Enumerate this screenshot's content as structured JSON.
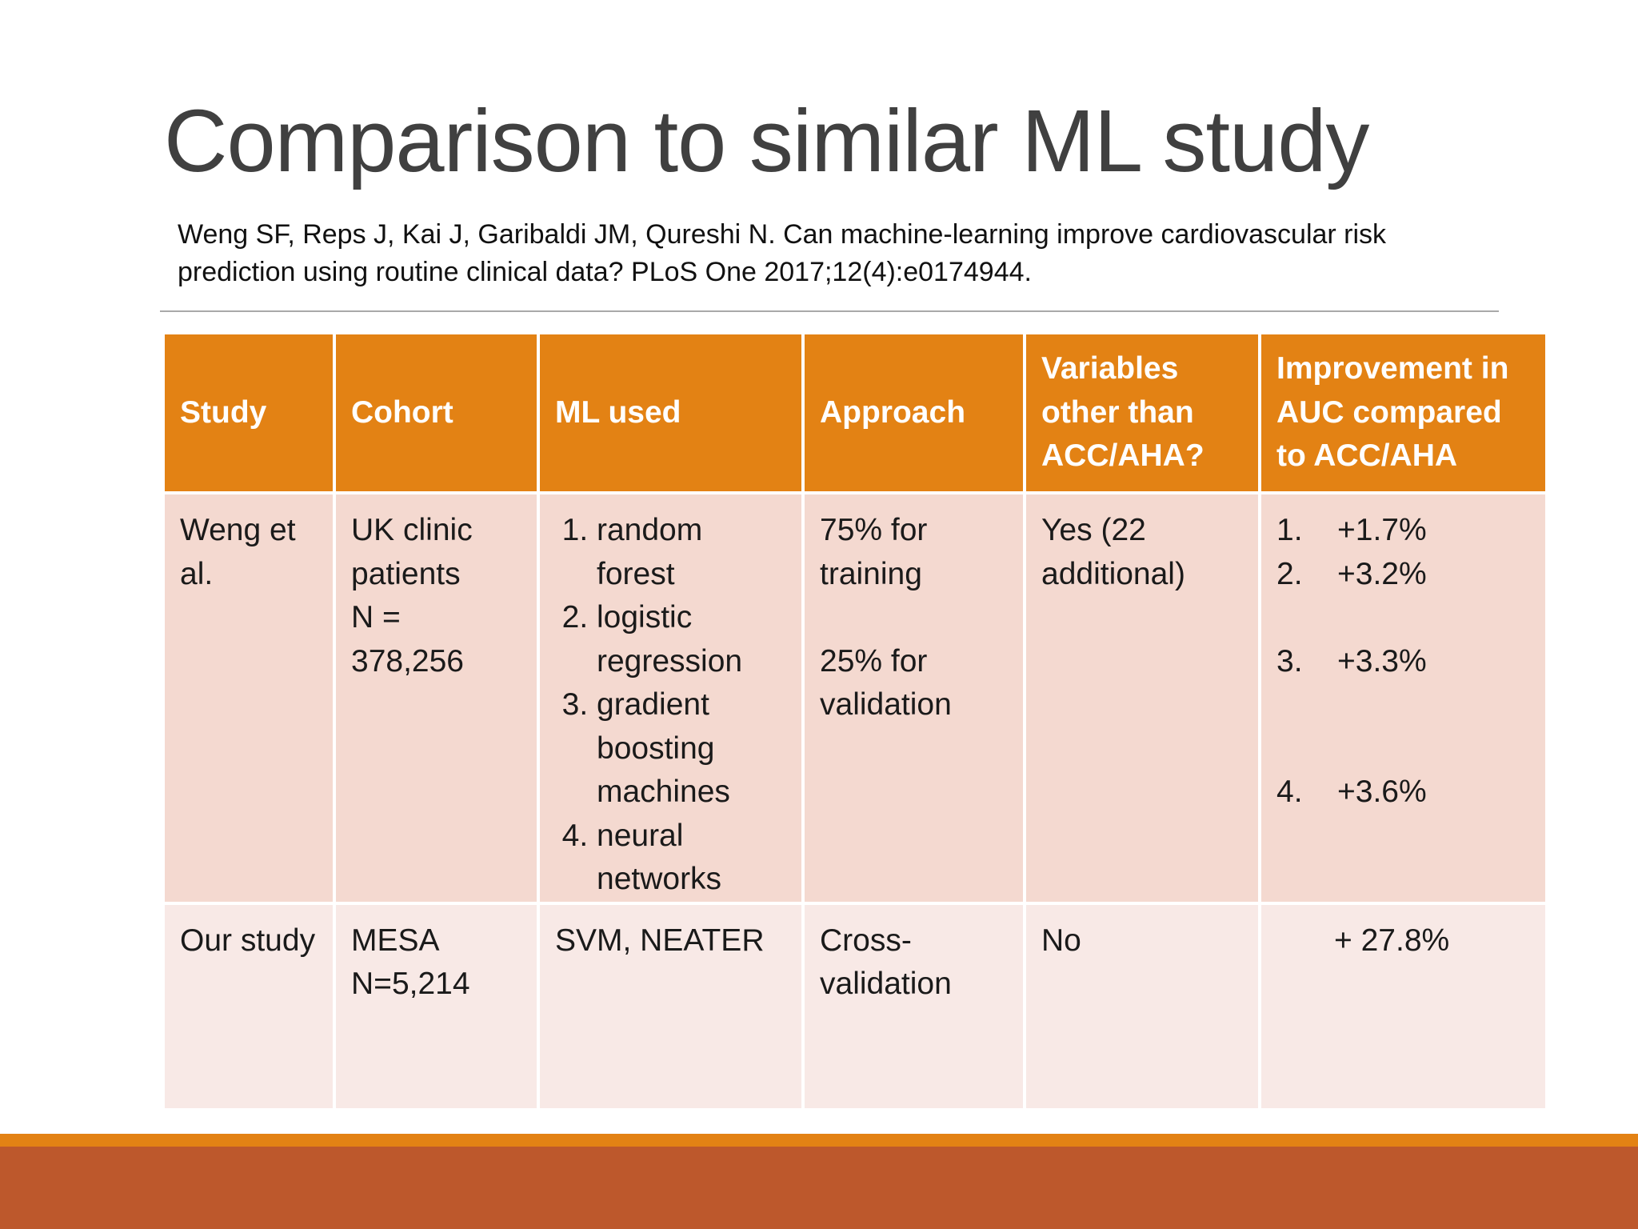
{
  "slide": {
    "title": "Comparison to similar ML study",
    "citation": "Weng SF, Reps J, Kai J, Garibaldi JM, Qureshi N. Can machine-learning improve cardiovascular risk prediction using routine clinical data? PLoS One 2017;12(4):e0174944."
  },
  "table": {
    "headers": [
      "Study",
      "Cohort",
      "ML used",
      "Approach",
      "Variables other than ACC/AHA?",
      "Improvement in AUC compared to ACC/AHA"
    ],
    "row1": {
      "study": "Weng et al.",
      "cohort_line1": "UK clinic patients",
      "cohort_line2": "N = 378,256",
      "ml_used": [
        "random forest",
        "logistic regression",
        "gradient boosting machines",
        "neural networks"
      ],
      "approach_line1": "75% for training",
      "approach_line2": "25% for validation",
      "variables": "Yes (22 additional)",
      "improvement": [
        {
          "num": "1.",
          "val": "+1.7%"
        },
        {
          "num": "2.",
          "val": "+3.2%"
        },
        {
          "num": "3.",
          "val": "+3.3%"
        },
        {
          "num": "4.",
          "val": "+3.6%"
        }
      ]
    },
    "row2": {
      "study": "Our study",
      "cohort_line1": "MESA",
      "cohort_line2": "N=5,214",
      "ml_used": "SVM, NEATER",
      "approach": "Cross-validation",
      "variables": "No",
      "improvement": "+ 27.8%"
    }
  },
  "colors": {
    "header_bg": "#e38214",
    "row1_bg": "#f4d9d0",
    "row2_bg": "#f8e9e6",
    "band_orange": "#e38214",
    "band_rust": "#bd582c",
    "title_text": "#404040"
  }
}
